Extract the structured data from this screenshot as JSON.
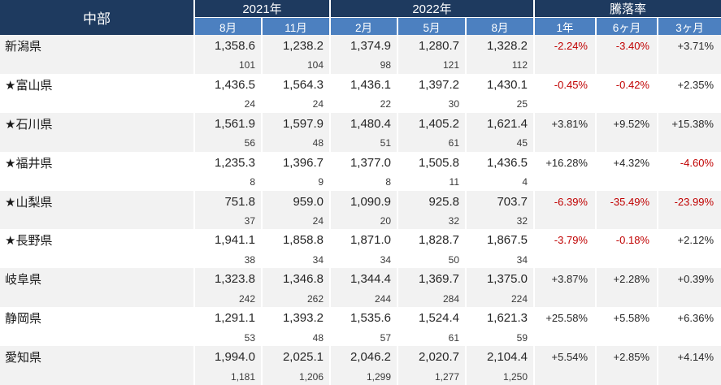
{
  "colors": {
    "header_navy": "#1E3A5F",
    "header_blue": "#4C80C0",
    "stripe": "#F2F2F2",
    "negative": "#C00000",
    "text_dark": "#262626"
  },
  "chart_data": {
    "type": "table",
    "region_label": "中部",
    "year_groups": [
      {
        "label": "2021年",
        "span": 2
      },
      {
        "label": "2022年",
        "span": 3
      },
      {
        "label": "騰落率",
        "span": 3
      }
    ],
    "month_headers": [
      "8月",
      "11月",
      "2月",
      "5月",
      "8月"
    ],
    "change_headers": [
      "1年",
      "6ヶ月",
      "3ヶ月"
    ],
    "rows": [
      {
        "label": "新潟県",
        "values": [
          "1,358.6",
          "1,238.2",
          "1,374.9",
          "1,280.7",
          "1,328.2"
        ],
        "counts": [
          "101",
          "104",
          "98",
          "121",
          "112"
        ],
        "changes": [
          "-2.24%",
          "-3.40%",
          "+3.71%"
        ]
      },
      {
        "label": "★富山県",
        "values": [
          "1,436.5",
          "1,564.3",
          "1,436.1",
          "1,397.2",
          "1,430.1"
        ],
        "counts": [
          "24",
          "24",
          "22",
          "30",
          "25"
        ],
        "changes": [
          "-0.45%",
          "-0.42%",
          "+2.35%"
        ]
      },
      {
        "label": "★石川県",
        "values": [
          "1,561.9",
          "1,597.9",
          "1,480.4",
          "1,405.2",
          "1,621.4"
        ],
        "counts": [
          "56",
          "48",
          "51",
          "61",
          "45"
        ],
        "changes": [
          "+3.81%",
          "+9.52%",
          "+15.38%"
        ]
      },
      {
        "label": "★福井県",
        "values": [
          "1,235.3",
          "1,396.7",
          "1,377.0",
          "1,505.8",
          "1,436.5"
        ],
        "counts": [
          "8",
          "9",
          "8",
          "11",
          "4"
        ],
        "changes": [
          "+16.28%",
          "+4.32%",
          "-4.60%"
        ]
      },
      {
        "label": "★山梨県",
        "values": [
          "751.8",
          "959.0",
          "1,090.9",
          "925.8",
          "703.7"
        ],
        "counts": [
          "37",
          "24",
          "20",
          "32",
          "32"
        ],
        "changes": [
          "-6.39%",
          "-35.49%",
          "-23.99%"
        ]
      },
      {
        "label": "★長野県",
        "values": [
          "1,941.1",
          "1,858.8",
          "1,871.0",
          "1,828.7",
          "1,867.5"
        ],
        "counts": [
          "38",
          "34",
          "34",
          "50",
          "34"
        ],
        "changes": [
          "-3.79%",
          "-0.18%",
          "+2.12%"
        ]
      },
      {
        "label": "岐阜県",
        "values": [
          "1,323.8",
          "1,346.8",
          "1,344.4",
          "1,369.7",
          "1,375.0"
        ],
        "counts": [
          "242",
          "262",
          "244",
          "284",
          "224"
        ],
        "changes": [
          "+3.87%",
          "+2.28%",
          "+0.39%"
        ]
      },
      {
        "label": "静岡県",
        "values": [
          "1,291.1",
          "1,393.2",
          "1,535.6",
          "1,524.4",
          "1,621.3"
        ],
        "counts": [
          "53",
          "48",
          "57",
          "61",
          "59"
        ],
        "changes": [
          "+25.58%",
          "+5.58%",
          "+6.36%"
        ]
      },
      {
        "label": "愛知県",
        "values": [
          "1,994.0",
          "2,025.1",
          "2,046.2",
          "2,020.7",
          "2,104.4"
        ],
        "counts": [
          "1,181",
          "1,206",
          "1,299",
          "1,277",
          "1,250"
        ],
        "changes": [
          "+5.54%",
          "+2.85%",
          "+4.14%"
        ]
      }
    ]
  }
}
